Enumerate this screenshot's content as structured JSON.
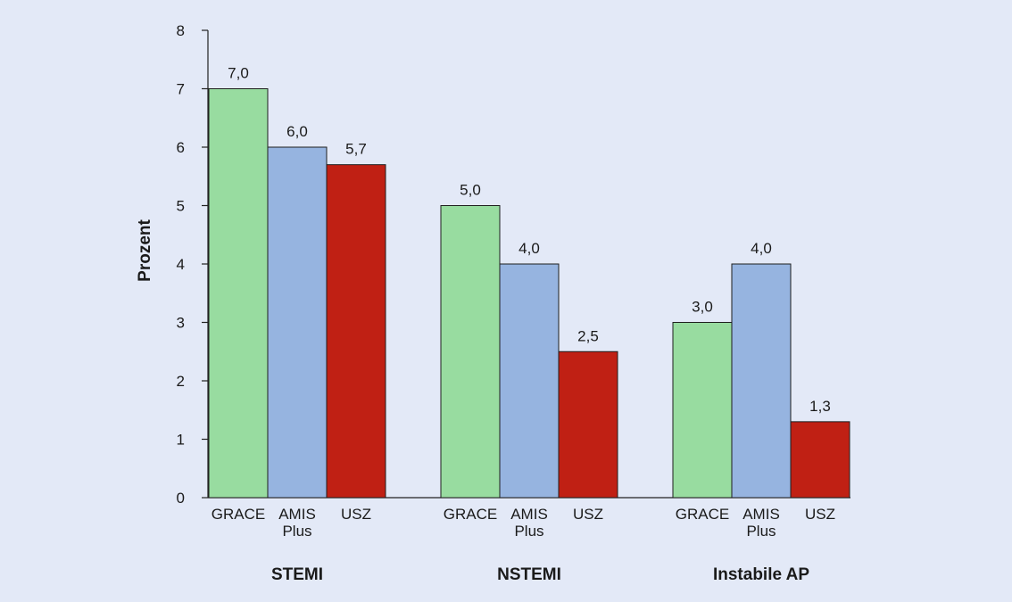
{
  "chart_data": {
    "type": "bar",
    "ylabel": "Prozent",
    "ylim": [
      0,
      8
    ],
    "yticks": [
      "0",
      "1",
      "2",
      "3",
      "4",
      "5",
      "6",
      "7",
      "8"
    ],
    "grid": false,
    "groups": [
      {
        "name": "STEMI",
        "bars": [
          {
            "category": [
              "GRACE"
            ],
            "value": 7.0,
            "label": "7,0",
            "color": "#98dca0"
          },
          {
            "category": [
              "AMIS",
              "Plus"
            ],
            "value": 6.0,
            "label": "6,0",
            "color": "#96b4e0"
          },
          {
            "category": [
              "USZ"
            ],
            "value": 5.7,
            "label": "5,7",
            "color": "#c02014"
          }
        ]
      },
      {
        "name": "NSTEMI",
        "bars": [
          {
            "category": [
              "GRACE"
            ],
            "value": 5.0,
            "label": "5,0",
            "color": "#98dca0"
          },
          {
            "category": [
              "AMIS",
              "Plus"
            ],
            "value": 4.0,
            "label": "4,0",
            "color": "#96b4e0"
          },
          {
            "category": [
              "USZ"
            ],
            "value": 2.5,
            "label": "2,5",
            "color": "#c02014"
          }
        ]
      },
      {
        "name": "Instabile AP",
        "bars": [
          {
            "category": [
              "GRACE"
            ],
            "value": 3.0,
            "label": "3,0",
            "color": "#98dca0"
          },
          {
            "category": [
              "AMIS",
              "Plus"
            ],
            "value": 4.0,
            "label": "4,0",
            "color": "#96b4e0"
          },
          {
            "category": [
              "USZ"
            ],
            "value": 1.3,
            "label": "1,3",
            "color": "#c02014"
          }
        ]
      }
    ]
  }
}
